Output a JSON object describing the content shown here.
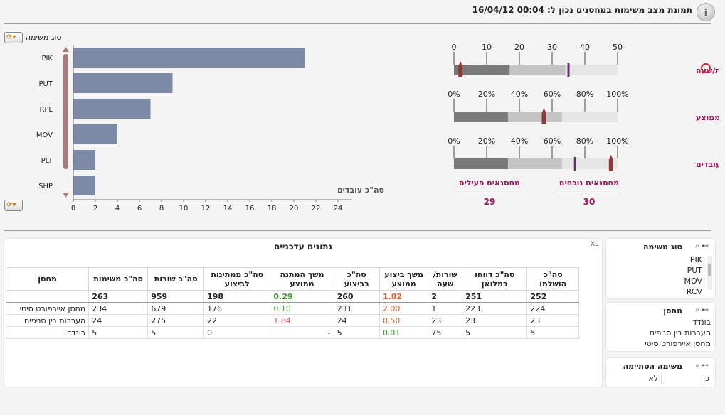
{
  "header": {
    "title": "תמונת מצב משימות במחסנים נכון ל: 00:04  16/04/12",
    "info_icon": "i"
  },
  "bar_chart": {
    "dimension_label": "סוג משימה",
    "x_axis_label": "סה\"כ עובדים",
    "cycle_icon": "cycle-icon"
  },
  "chart_data": {
    "type": "bar",
    "orientation": "horizontal",
    "categories": [
      "PIK",
      "PUT",
      "RPL",
      "MOV",
      "PLT",
      "SHP"
    ],
    "values": [
      21,
      9,
      7,
      4,
      2,
      2
    ],
    "xlabel": "סה\"כ עובדים",
    "ylabel": "סוג משימה",
    "xlim": [
      0,
      24
    ],
    "x_ticks": [
      0,
      2,
      4,
      6,
      8,
      10,
      12,
      14,
      16,
      18,
      20,
      22,
      24
    ],
    "bar_color": "#7d8aa5"
  },
  "gauges": [
    {
      "label": "שורות/שעה",
      "ticks": [
        "0",
        "10",
        "20",
        "30",
        "40",
        "50"
      ],
      "min": 0,
      "max": 50,
      "dark_to": 17,
      "light_to": 34,
      "marker": 2,
      "target": 35
    },
    {
      "label": "% ביצוע ממוצע",
      "ticks": [
        "0%",
        "20%",
        "40%",
        "60%",
        "80%",
        "100%"
      ],
      "min": 0,
      "max": 100,
      "dark_to": 33,
      "light_to": 66,
      "marker": 55,
      "target": null
    },
    {
      "label": "ניצולת עובדים",
      "ticks": [
        "0%",
        "20%",
        "40%",
        "60%",
        "80%",
        "100%"
      ],
      "min": 0,
      "max": 100,
      "dark_to": 33,
      "light_to": 66,
      "marker": 96,
      "target": 74
    }
  ],
  "gauge_colors": {
    "dark": "#7a7a7a",
    "light": "#c4c4c4",
    "bg": "#e6e6e6",
    "marker": "#8b3a3a",
    "target": "#6a2c6a",
    "label": "#a0145a"
  },
  "warehouse_stats": {
    "present_label": "מחסנאים נוכחים",
    "present_value": "30",
    "active_label": "מחסנאים פעילים",
    "active_value": "29"
  },
  "table": {
    "title": "נתונים עדכניים",
    "xl_label": "XL",
    "columns": [
      "סה\"כ הושלמו",
      "סה\"כ דווחו במלואן",
      "שורות/ שעה",
      "משך ביצוע ממוצע",
      "סה\"כ בביצוע",
      "משך המתנה ממוצע",
      "סה\"כ ממתינות לביצוע",
      "סה\"כ שורות",
      "סה\"כ משימות",
      "מחסן"
    ],
    "total_row": [
      "252",
      "251",
      "2",
      "1.82",
      "260",
      "0.29",
      "198",
      "959",
      "263",
      ""
    ],
    "rows": [
      [
        "224",
        "223",
        "1",
        "2.00",
        "231",
        "0.10",
        "176",
        "679",
        "234",
        "מחסן איירפורט סיטי"
      ],
      [
        "23",
        "23",
        "23",
        "0.50",
        "24",
        "1.84",
        "22",
        "275",
        "24",
        "העברות בין סניפים"
      ],
      [
        "5",
        "5",
        "75",
        "0.01",
        "5",
        "-",
        "0",
        "5",
        "5",
        "בונדד"
      ]
    ],
    "colors": {
      "red": "#e05a2a",
      "green": "#3a9a2a",
      "rose": "#d9534f"
    }
  },
  "filters": {
    "task_type": {
      "title": "סוג משימה",
      "items": [
        "PIK",
        "PUT",
        "MOV",
        "RCV"
      ]
    },
    "warehouse": {
      "title": "מחסן",
      "items": [
        "בונדד",
        "העברות בין סניפים",
        "מחסן איירפורט סיטי"
      ]
    },
    "task_done": {
      "title": "משימה הסתיימה",
      "yes": "כן",
      "no": "לא"
    }
  }
}
